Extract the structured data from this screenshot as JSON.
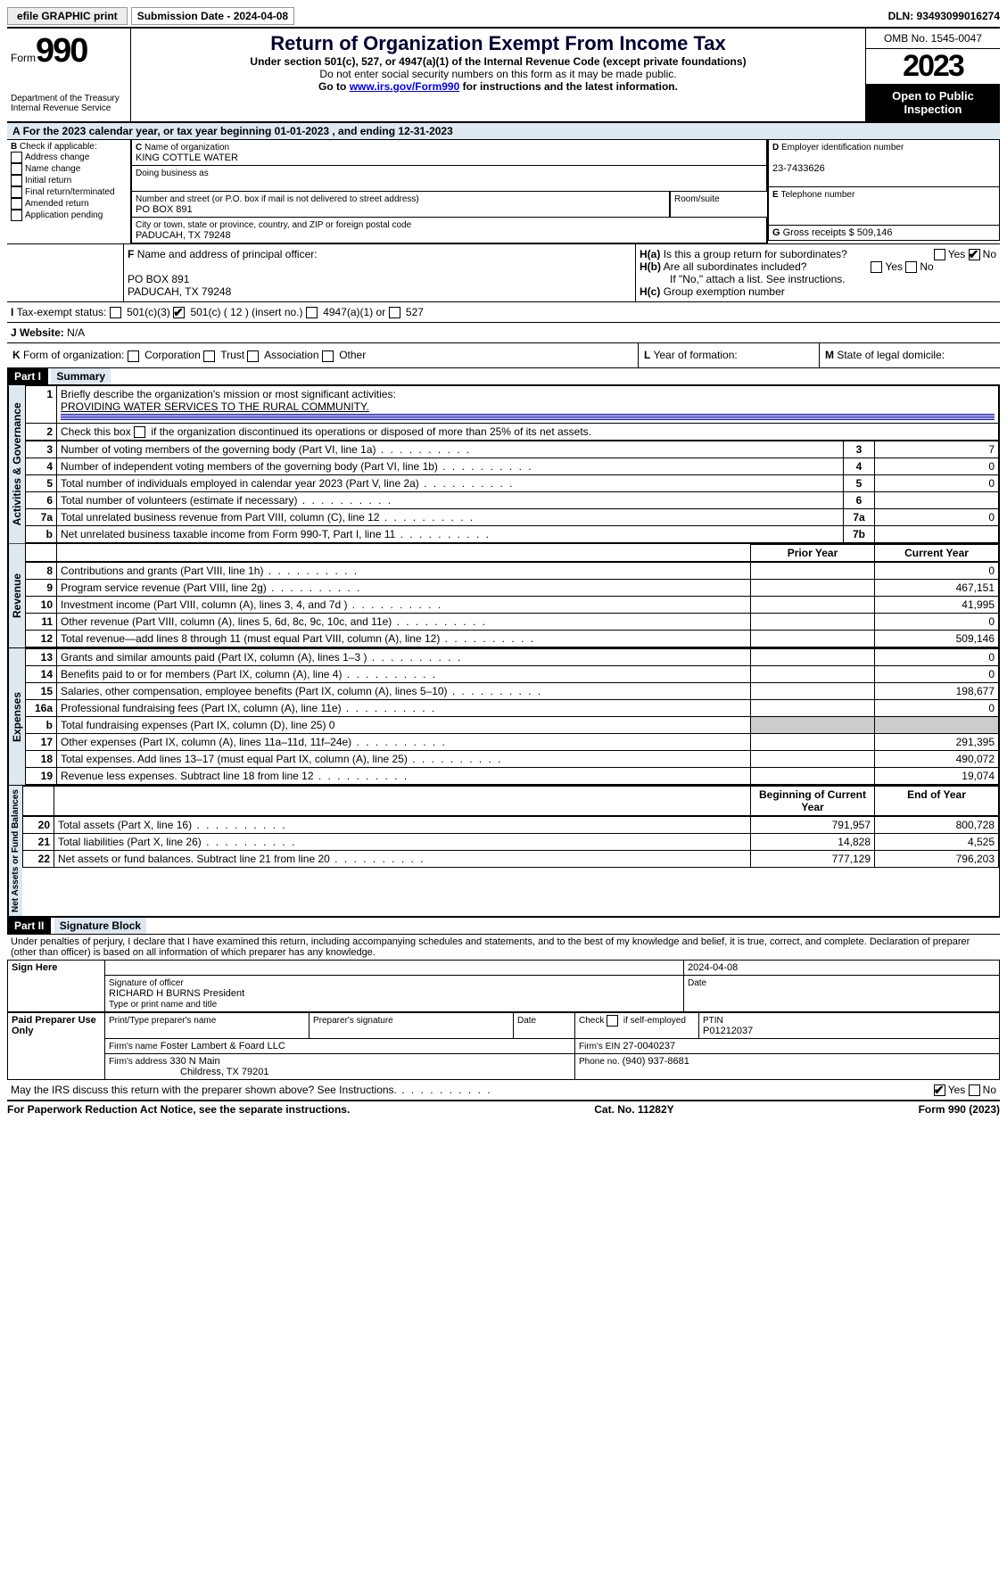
{
  "topbar": {
    "efile": "efile GRAPHIC print",
    "submission": "Submission Date - 2024-04-08",
    "dln": "DLN: 93493099016274"
  },
  "header": {
    "form_word": "Form",
    "form_num": "990",
    "dept": "Department of the Treasury",
    "irs": "Internal Revenue Service",
    "title": "Return of Organization Exempt From Income Tax",
    "sub1": "Under section 501(c), 527, or 4947(a)(1) of the Internal Revenue Code (except private foundations)",
    "sub2": "Do not enter social security numbers on this form as it may be made public.",
    "sub3_pre": "Go to ",
    "sub3_link": "www.irs.gov/Form990",
    "sub3_post": " for instructions and the latest information.",
    "omb": "OMB No. 1545-0047",
    "year": "2023",
    "inspect": "Open to Public Inspection"
  },
  "A": {
    "text": "For the 2023 calendar year, or tax year beginning 01-01-2023    , and ending 12-31-2023"
  },
  "B": {
    "label": "Check if applicable:",
    "items": [
      "Address change",
      "Name change",
      "Initial return",
      "Final return/terminated",
      "Amended return",
      "Application pending"
    ]
  },
  "C": {
    "name_lbl": "Name of organization",
    "name": "KING COTTLE WATER",
    "dba_lbl": "Doing business as",
    "street_lbl": "Number and street (or P.O. box if mail is not delivered to street address)",
    "street": "PO BOX 891",
    "room_lbl": "Room/suite",
    "city_lbl": "City or town, state or province, country, and ZIP or foreign postal code",
    "city": "PADUCAH, TX  79248"
  },
  "D": {
    "lbl": "Employer identification number",
    "val": "23-7433626"
  },
  "E": {
    "lbl": "Telephone number"
  },
  "G": {
    "lbl": "Gross receipts $",
    "val": "509,146"
  },
  "F": {
    "lbl": "Name and address of principal officer:",
    "l1": "PO BOX 891",
    "l2": "PADUCAH, TX  79248"
  },
  "H": {
    "a": "Is this a group return for subordinates?",
    "b": "Are all subordinates included?",
    "b2": "If \"No,\" attach a list. See instructions.",
    "c": "Group exemption number",
    "yes": "Yes",
    "no": "No"
  },
  "I": {
    "lbl": "Tax-exempt status:",
    "o1": "501(c)(3)",
    "o2": "501(c) ( 12 ) (insert no.)",
    "o3": "4947(a)(1) or",
    "o4": "527"
  },
  "J": {
    "lbl": "Website:",
    "val": "N/A"
  },
  "K": {
    "lbl": "Form of organization:",
    "o": [
      "Corporation",
      "Trust",
      "Association",
      "Other"
    ]
  },
  "L": {
    "lbl": "Year of formation:"
  },
  "M": {
    "lbl": "State of legal domicile:"
  },
  "part1": {
    "hdr": "Part I",
    "title": "Summary",
    "l1": "Briefly describe the organization's mission or most significant activities:",
    "l1v": "PROVIDING WATER SERVICES TO THE RURAL COMMUNITY.",
    "l2": "Check this box          if the organization discontinued its operations or disposed of more than 25% of its net assets.",
    "rows_gov": [
      {
        "n": "3",
        "d": "Number of voting members of the governing body (Part VI, line 1a)",
        "box": "3",
        "v": "7"
      },
      {
        "n": "4",
        "d": "Number of independent voting members of the governing body (Part VI, line 1b)",
        "box": "4",
        "v": "0"
      },
      {
        "n": "5",
        "d": "Total number of individuals employed in calendar year 2023 (Part V, line 2a)",
        "box": "5",
        "v": "0"
      },
      {
        "n": "6",
        "d": "Total number of volunteers (estimate if necessary)",
        "box": "6",
        "v": ""
      },
      {
        "n": "7a",
        "d": "Total unrelated business revenue from Part VIII, column (C), line 12",
        "box": "7a",
        "v": "0"
      },
      {
        "n": "b",
        "d": "Net unrelated business taxable income from Form 990-T, Part I, line 11",
        "box": "7b",
        "v": ""
      }
    ],
    "col_prior": "Prior Year",
    "col_curr": "Current Year",
    "rows_rev": [
      {
        "n": "8",
        "d": "Contributions and grants (Part VIII, line 1h)",
        "p": "",
        "c": "0"
      },
      {
        "n": "9",
        "d": "Program service revenue (Part VIII, line 2g)",
        "p": "",
        "c": "467,151"
      },
      {
        "n": "10",
        "d": "Investment income (Part VIII, column (A), lines 3, 4, and 7d )",
        "p": "",
        "c": "41,995"
      },
      {
        "n": "11",
        "d": "Other revenue (Part VIII, column (A), lines 5, 6d, 8c, 9c, 10c, and 11e)",
        "p": "",
        "c": "0"
      },
      {
        "n": "12",
        "d": "Total revenue—add lines 8 through 11 (must equal Part VIII, column (A), line 12)",
        "p": "",
        "c": "509,146"
      }
    ],
    "rows_exp": [
      {
        "n": "13",
        "d": "Grants and similar amounts paid (Part IX, column (A), lines 1–3 )",
        "p": "",
        "c": "0"
      },
      {
        "n": "14",
        "d": "Benefits paid to or for members (Part IX, column (A), line 4)",
        "p": "",
        "c": "0"
      },
      {
        "n": "15",
        "d": "Salaries, other compensation, employee benefits (Part IX, column (A), lines 5–10)",
        "p": "",
        "c": "198,677"
      },
      {
        "n": "16a",
        "d": "Professional fundraising fees (Part IX, column (A), line 11e)",
        "p": "",
        "c": "0"
      },
      {
        "n": "b",
        "d": "Total fundraising expenses (Part IX, column (D), line 25) 0",
        "grey": true
      },
      {
        "n": "17",
        "d": "Other expenses (Part IX, column (A), lines 11a–11d, 11f–24e)",
        "p": "",
        "c": "291,395"
      },
      {
        "n": "18",
        "d": "Total expenses. Add lines 13–17 (must equal Part IX, column (A), line 25)",
        "p": "",
        "c": "490,072"
      },
      {
        "n": "19",
        "d": "Revenue less expenses. Subtract line 18 from line 12",
        "p": "",
        "c": "19,074"
      }
    ],
    "col_beg": "Beginning of Current Year",
    "col_end": "End of Year",
    "rows_net": [
      {
        "n": "20",
        "d": "Total assets (Part X, line 16)",
        "p": "791,957",
        "c": "800,728"
      },
      {
        "n": "21",
        "d": "Total liabilities (Part X, line 26)",
        "p": "14,828",
        "c": "4,525"
      },
      {
        "n": "22",
        "d": "Net assets or fund balances. Subtract line 21 from line 20",
        "p": "777,129",
        "c": "796,203"
      }
    ]
  },
  "vtabs": {
    "gov": "Activities & Governance",
    "rev": "Revenue",
    "exp": "Expenses",
    "net": "Net Assets or Fund Balances"
  },
  "part2": {
    "hdr": "Part II",
    "title": "Signature Block",
    "decl": "Under penalties of perjury, I declare that I have examined this return, including accompanying schedules and statements, and to the best of my knowledge and belief, it is true, correct, and complete. Declaration of preparer (other than officer) is based on all information of which preparer has any knowledge."
  },
  "sign": {
    "here": "Sign Here",
    "sig_lbl": "Signature of officer",
    "name": "RICHARD H BURNS President",
    "title_lbl": "Type or print name and title",
    "date_lbl": "Date",
    "date": "2024-04-08"
  },
  "prep": {
    "here": "Paid Preparer Use Only",
    "p_name_lbl": "Print/Type preparer's name",
    "p_sig_lbl": "Preparer's signature",
    "date_lbl": "Date",
    "self_lbl": "Check           if self-employed",
    "ptin_lbl": "PTIN",
    "ptin": "P01212037",
    "firm_name_lbl": "Firm's name",
    "firm_name": "Foster Lambert & Foard LLC",
    "firm_ein_lbl": "Firm's EIN",
    "firm_ein": "27-0040237",
    "firm_addr_lbl": "Firm's address",
    "firm_addr1": "330 N Main",
    "firm_addr2": "Childress, TX  79201",
    "phone_lbl": "Phone no.",
    "phone": "(940) 937-8681"
  },
  "discuss": "May the IRS discuss this return with the preparer shown above? See Instructions.",
  "footer": {
    "l": "For Paperwork Reduction Act Notice, see the separate instructions.",
    "c": "Cat. No. 11282Y",
    "r": "Form 990 (2023)"
  },
  "colors": {
    "band": "#dde8f0",
    "link": "#0000ee"
  }
}
